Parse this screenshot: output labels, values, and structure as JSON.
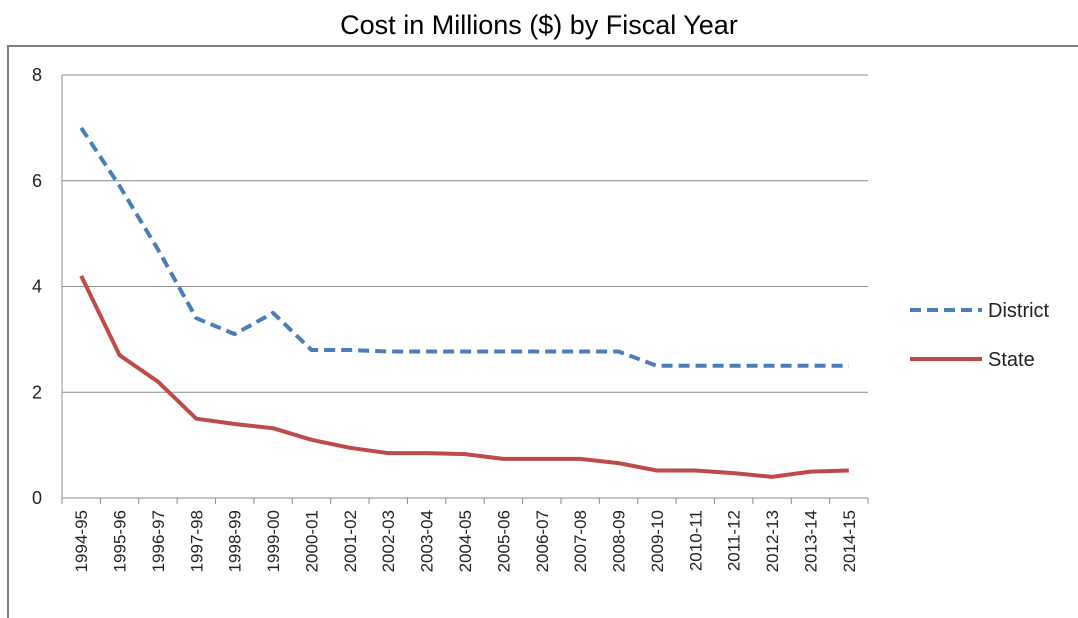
{
  "chart_data": {
    "type": "line",
    "title": "Cost in Millions ($) by Fiscal Year",
    "xlabel": "",
    "ylabel": "",
    "ylim": [
      0,
      8
    ],
    "yticks": [
      "0",
      "2",
      "4",
      "6",
      "8"
    ],
    "grid": "horizontal",
    "legend_position": "right",
    "categories": [
      "1994-95",
      "1995-96",
      "1996-97",
      "1997-98",
      "1998-99",
      "1999-00",
      "2000-01",
      "2001-02",
      "2002-03",
      "2003-04",
      "2004-05",
      "2005-06",
      "2006-07",
      "2007-08",
      "2008-09",
      "2009-10",
      "2010-11",
      "2011-12",
      "2012-13",
      "2013-14",
      "2014-15"
    ],
    "series": [
      {
        "name": "District",
        "color": "#4a7ebb",
        "style": "dashed",
        "values": [
          7.0,
          5.9,
          4.7,
          3.4,
          3.1,
          3.5,
          2.8,
          2.8,
          2.77,
          2.77,
          2.77,
          2.77,
          2.77,
          2.77,
          2.77,
          2.5,
          2.5,
          2.5,
          2.5,
          2.5,
          2.5
        ]
      },
      {
        "name": "State",
        "color": "#be4b48",
        "style": "solid",
        "values": [
          4.2,
          2.7,
          2.2,
          1.5,
          1.4,
          1.32,
          1.1,
          0.95,
          0.85,
          0.85,
          0.83,
          0.74,
          0.74,
          0.74,
          0.66,
          0.52,
          0.52,
          0.47,
          0.4,
          0.5,
          0.52
        ]
      }
    ]
  }
}
